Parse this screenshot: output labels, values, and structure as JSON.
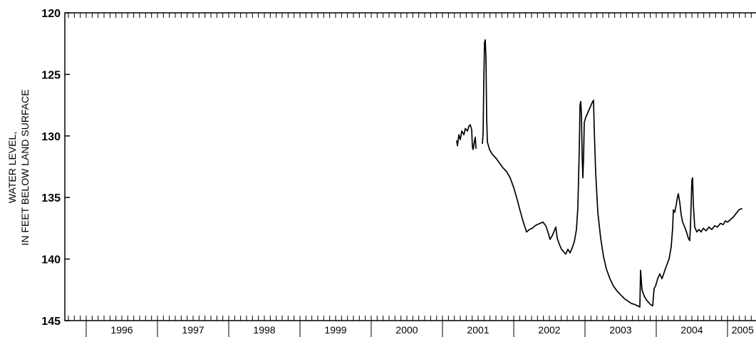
{
  "chart_data": {
    "type": "line",
    "ylabel_lines": [
      "WATER LEVEL,",
      "IN FEET BELOW LAND SURFACE"
    ],
    "y_reversed": true,
    "ylim": [
      120,
      145
    ],
    "yticks": [
      120,
      125,
      130,
      135,
      140,
      145
    ],
    "xlim": [
      1995.7,
      2005.5
    ],
    "year_labels": [
      "1996",
      "1997",
      "1998",
      "1999",
      "2000",
      "2001",
      "2002",
      "2003",
      "2004",
      "2005"
    ],
    "year_boundaries": [
      1996,
      1997,
      1998,
      1999,
      2000,
      2001,
      2002,
      2003,
      2004,
      2005
    ],
    "grid": false,
    "legend": "none",
    "line_color": "#000000",
    "series": [
      {
        "segments": [
          [
            [
              2001.2,
              130.4
            ],
            [
              2001.21,
              130.8
            ],
            [
              2001.23,
              129.9
            ],
            [
              2001.25,
              130.3
            ],
            [
              2001.27,
              129.6
            ],
            [
              2001.3,
              129.9
            ],
            [
              2001.32,
              129.4
            ],
            [
              2001.35,
              129.6
            ],
            [
              2001.37,
              129.2
            ],
            [
              2001.39,
              129.1
            ],
            [
              2001.41,
              129.5
            ],
            [
              2001.42,
              130.9
            ],
            [
              2001.43,
              131.1
            ],
            [
              2001.45,
              130.4
            ],
            [
              2001.46,
              130.1
            ],
            [
              2001.47,
              131.0
            ]
          ],
          [
            [
              2001.56,
              130.6
            ],
            [
              2001.57,
              129.8
            ],
            [
              2001.58,
              125.5
            ],
            [
              2001.59,
              122.4
            ],
            [
              2001.6,
              122.2
            ],
            [
              2001.61,
              123.6
            ],
            [
              2001.62,
              128.5
            ],
            [
              2001.63,
              130.5
            ],
            [
              2001.66,
              131.1
            ],
            [
              2001.7,
              131.5
            ],
            [
              2001.75,
              131.8
            ],
            [
              2001.8,
              132.2
            ],
            [
              2001.85,
              132.6
            ],
            [
              2001.9,
              132.9
            ],
            [
              2001.95,
              133.4
            ],
            [
              2002.0,
              134.2
            ],
            [
              2002.05,
              135.2
            ],
            [
              2002.1,
              136.3
            ],
            [
              2002.14,
              137.1
            ],
            [
              2002.18,
              137.8
            ],
            [
              2002.22,
              137.6
            ],
            [
              2002.26,
              137.5
            ],
            [
              2002.3,
              137.3
            ],
            [
              2002.33,
              137.2
            ],
            [
              2002.37,
              137.1
            ],
            [
              2002.41,
              137.0
            ],
            [
              2002.45,
              137.3
            ],
            [
              2002.48,
              137.8
            ],
            [
              2002.51,
              138.4
            ],
            [
              2002.54,
              138.1
            ],
            [
              2002.57,
              137.7
            ],
            [
              2002.59,
              137.4
            ],
            [
              2002.61,
              138.3
            ],
            [
              2002.64,
              138.8
            ],
            [
              2002.67,
              139.2
            ],
            [
              2002.7,
              139.4
            ],
            [
              2002.73,
              139.6
            ],
            [
              2002.76,
              139.2
            ],
            [
              2002.79,
              139.5
            ],
            [
              2002.82,
              139.1
            ],
            [
              2002.85,
              138.6
            ],
            [
              2002.88,
              137.6
            ],
            [
              2002.9,
              135.8
            ],
            [
              2002.92,
              131.0
            ],
            [
              2002.93,
              127.5
            ],
            [
              2002.94,
              127.2
            ],
            [
              2002.95,
              128.2
            ],
            [
              2002.96,
              131.6
            ],
            [
              2002.97,
              133.4
            ],
            [
              2002.98,
              131.8
            ],
            [
              2002.99,
              128.9
            ],
            [
              2003.01,
              128.5
            ],
            [
              2003.04,
              128.1
            ],
            [
              2003.07,
              127.7
            ],
            [
              2003.1,
              127.3
            ],
            [
              2003.12,
              127.1
            ],
            [
              2003.13,
              129.5
            ],
            [
              2003.15,
              133.0
            ],
            [
              2003.18,
              136.2
            ],
            [
              2003.22,
              138.3
            ],
            [
              2003.26,
              139.8
            ],
            [
              2003.3,
              140.8
            ],
            [
              2003.35,
              141.6
            ],
            [
              2003.4,
              142.2
            ],
            [
              2003.45,
              142.6
            ],
            [
              2003.5,
              142.9
            ],
            [
              2003.55,
              143.2
            ],
            [
              2003.6,
              143.4
            ],
            [
              2003.65,
              143.6
            ],
            [
              2003.7,
              143.7
            ],
            [
              2003.74,
              143.8
            ],
            [
              2003.77,
              143.9
            ],
            [
              2003.78,
              140.9
            ],
            [
              2003.8,
              142.5
            ],
            [
              2003.83,
              143.0
            ],
            [
              2003.86,
              143.3
            ],
            [
              2003.89,
              143.5
            ],
            [
              2003.92,
              143.7
            ],
            [
              2003.95,
              143.8
            ],
            [
              2003.96,
              143.1
            ],
            [
              2003.97,
              142.4
            ],
            [
              2003.99,
              142.2
            ],
            [
              2004.02,
              141.6
            ],
            [
              2004.05,
              141.2
            ],
            [
              2004.08,
              141.6
            ],
            [
              2004.11,
              141.1
            ],
            [
              2004.14,
              140.6
            ],
            [
              2004.18,
              140.0
            ],
            [
              2004.21,
              139.0
            ],
            [
              2004.23,
              137.5
            ],
            [
              2004.24,
              136.0
            ],
            [
              2004.26,
              136.2
            ],
            [
              2004.28,
              135.6
            ],
            [
              2004.3,
              134.9
            ],
            [
              2004.31,
              134.7
            ],
            [
              2004.33,
              135.4
            ],
            [
              2004.35,
              136.4
            ],
            [
              2004.37,
              137.0
            ],
            [
              2004.4,
              137.4
            ],
            [
              2004.43,
              137.9
            ],
            [
              2004.45,
              138.3
            ],
            [
              2004.47,
              138.5
            ],
            [
              2004.48,
              137.4
            ],
            [
              2004.5,
              133.6
            ],
            [
              2004.51,
              133.4
            ],
            [
              2004.52,
              135.5
            ],
            [
              2004.54,
              137.4
            ],
            [
              2004.57,
              137.8
            ],
            [
              2004.6,
              137.6
            ],
            [
              2004.63,
              137.8
            ],
            [
              2004.66,
              137.5
            ],
            [
              2004.7,
              137.7
            ],
            [
              2004.74,
              137.4
            ],
            [
              2004.78,
              137.6
            ],
            [
              2004.82,
              137.3
            ],
            [
              2004.86,
              137.4
            ],
            [
              2004.9,
              137.1
            ],
            [
              2004.94,
              137.2
            ],
            [
              2004.97,
              136.9
            ],
            [
              2005.0,
              137.0
            ],
            [
              2005.04,
              136.8
            ],
            [
              2005.08,
              136.6
            ],
            [
              2005.12,
              136.3
            ],
            [
              2005.16,
              136.0
            ],
            [
              2005.2,
              135.9
            ]
          ]
        ]
      }
    ]
  }
}
